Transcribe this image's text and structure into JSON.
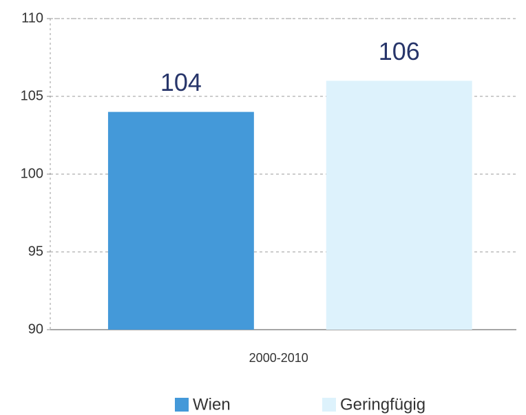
{
  "chart_data": {
    "type": "bar",
    "categories": [
      "2000-2010"
    ],
    "series": [
      {
        "name": "Wien",
        "color": "#4499d9",
        "values": [
          104
        ],
        "value_labels": [
          "104"
        ]
      },
      {
        "name": "Geringfügig",
        "color": "#ddf2fc",
        "values": [
          106
        ],
        "value_labels": [
          "106"
        ]
      }
    ],
    "ylim": [
      90,
      110
    ],
    "yticks": [
      90,
      95,
      100,
      105,
      110
    ],
    "grid": true,
    "legend": "bottom"
  }
}
